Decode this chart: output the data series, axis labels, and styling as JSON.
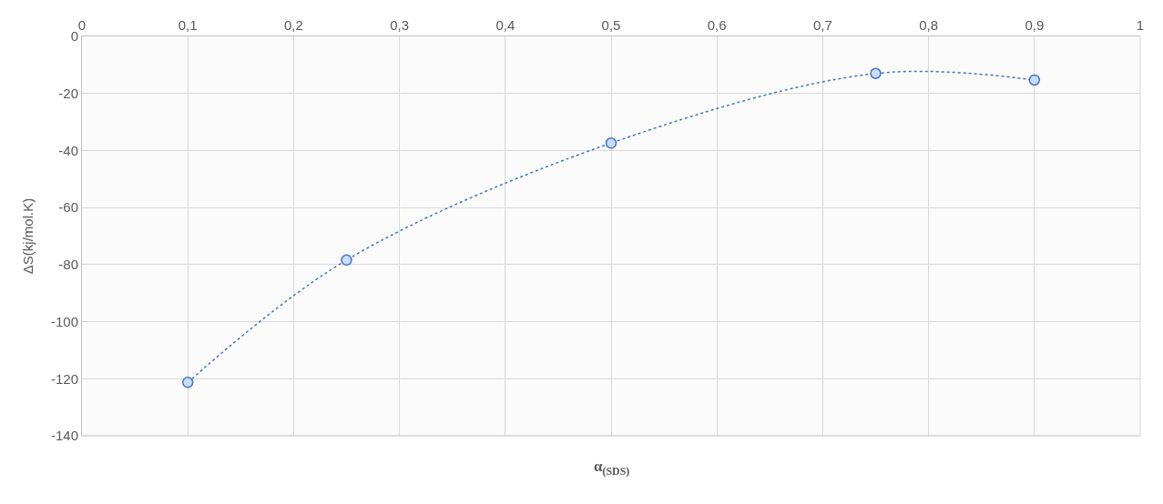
{
  "chart_data": {
    "type": "line",
    "xlabel": "α$_{(SDS)}$",
    "ylabel": "ΔS(kj/mol.K)",
    "x": [
      0.1,
      0.25,
      0.5,
      0.75,
      0.9
    ],
    "series": [
      {
        "color": "#4472c4",
        "values": [
          -121.3,
          -78.4,
          -37.4,
          -13.0,
          -15.3
        ]
      }
    ],
    "xlim": [
      0,
      1
    ],
    "xticks": [
      {
        "value": 0,
        "label": "0"
      },
      {
        "value": 0.1,
        "label": "0,1"
      },
      {
        "value": 0.2,
        "label": "0,2"
      },
      {
        "value": 0.3,
        "label": "0,3"
      },
      {
        "value": 0.4,
        "label": "0,4"
      },
      {
        "value": 0.5,
        "label": "0,5"
      },
      {
        "value": 0.6,
        "label": "0,6"
      },
      {
        "value": 0.7,
        "label": "0,7"
      },
      {
        "value": 0.8,
        "label": "0,8"
      },
      {
        "value": 0.9,
        "label": "0,9"
      },
      {
        "value": 1,
        "label": "1"
      }
    ],
    "ylim": [
      -140,
      0
    ],
    "yticks": [
      0,
      -20,
      -40,
      -60,
      -80,
      -100,
      -120,
      -140
    ],
    "grid": true,
    "marker": "circle",
    "line_style": "dotted"
  }
}
